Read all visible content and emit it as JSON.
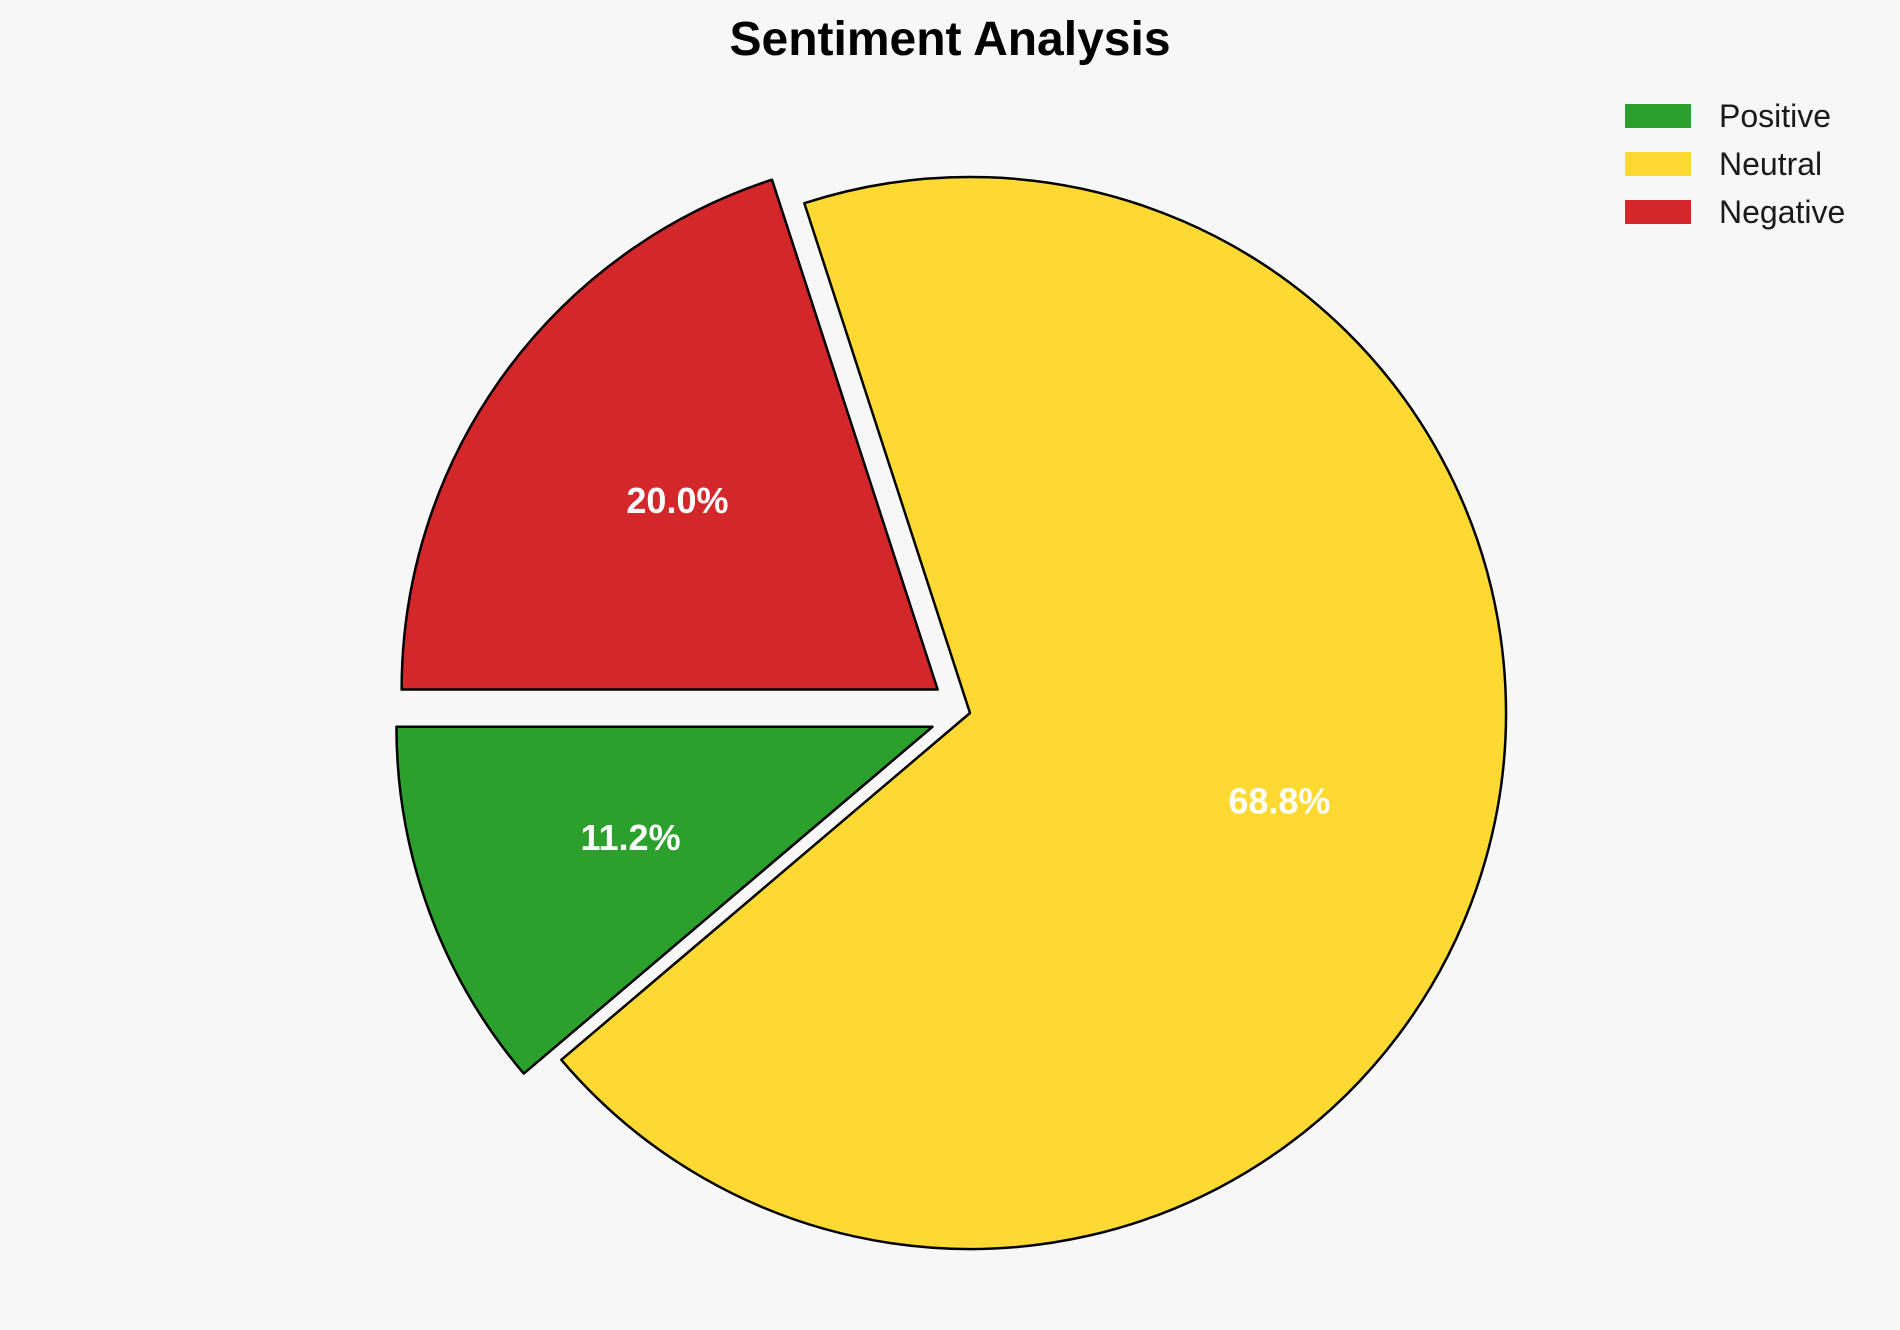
{
  "chart_data": {
    "type": "pie",
    "title": "Sentiment Analysis",
    "categories": [
      "Positive",
      "Neutral",
      "Negative"
    ],
    "values": [
      11.2,
      68.8,
      20.0
    ],
    "value_labels": [
      "11.2%",
      "68.8%",
      "20.0%"
    ],
    "colors": [
      "#2ca02c",
      "#fdd931",
      "#d42729"
    ],
    "exploded": [
      true,
      false,
      true
    ],
    "start_angle_deg": 180,
    "direction": "counterclockwise",
    "legend": {
      "placement": "top-right",
      "entries": [
        "Positive",
        "Neutral",
        "Negative"
      ]
    }
  }
}
